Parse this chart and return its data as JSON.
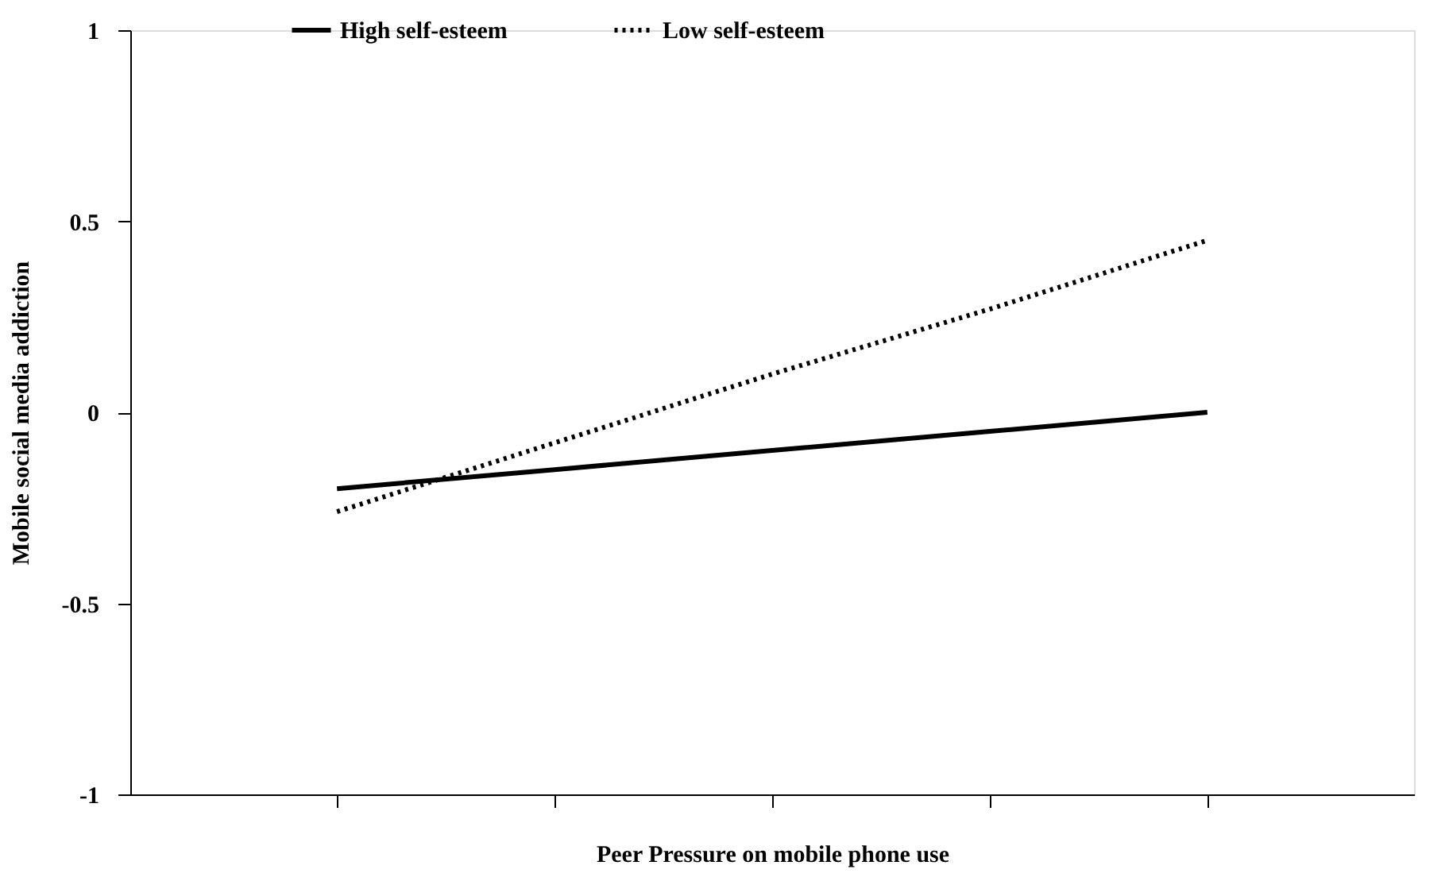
{
  "chart_data": {
    "type": "line",
    "xlabel": "Peer Pressure on mobile phone use",
    "ylabel": "Mobile social media addiction",
    "categories": [
      null,
      null,
      null,
      null,
      null
    ],
    "series": [
      {
        "name": "High self-esteem",
        "color": "#000000",
        "line_style": "solid",
        "values": [
          -0.2,
          -0.15,
          -0.1,
          -0.05,
          0.0
        ]
      },
      {
        "name": "Low self-esteem",
        "color": "#000000",
        "line_style": "dotted",
        "values": [
          -0.26,
          -0.08,
          0.1,
          0.27,
          0.45
        ]
      }
    ],
    "ylim": [
      -1,
      1
    ],
    "yticks": [
      -1,
      -0.5,
      0,
      0.5,
      1
    ],
    "grid": false,
    "legend": "top",
    "marker": "none"
  }
}
